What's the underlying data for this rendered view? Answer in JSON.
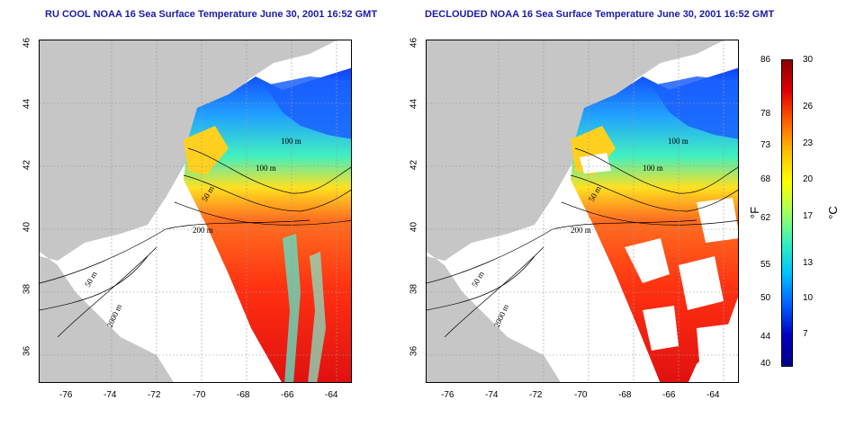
{
  "left_title": "RU COOL NOAA 16 Sea Surface Temperature June 30, 2001 16:52 GMT",
  "right_title": "DECLOUDED NOAA 16 Sea Surface Temperature June 30, 2001 16:52 GMT",
  "lon_ticks": [
    "-76",
    "-74",
    "-72",
    "-70",
    "-68",
    "-66",
    "-64"
  ],
  "lat_ticks": [
    "46",
    "44",
    "42",
    "40",
    "38",
    "36"
  ],
  "contour_labels": {
    "c100a": "100 m",
    "c100b": "100 m",
    "c50": "50 m",
    "c200": "200 m",
    "c50b": "50 m",
    "c2000": "2000 m"
  },
  "colorbar": {
    "fahrenheit_ticks": [
      "86",
      "78",
      "73",
      "68",
      "62",
      "55",
      "50",
      "44",
      "40"
    ],
    "celsius_ticks": [
      "30",
      "26",
      "23",
      "20",
      "17",
      "13",
      "10",
      "7"
    ],
    "fahrenheit_unit": "°F",
    "celsius_unit": "°C",
    "colors": [
      "#8b0000",
      "#e00000",
      "#ff6000",
      "#ffc000",
      "#ffff00",
      "#a0ff60",
      "#30f0c0",
      "#00c0ff",
      "#0060ff",
      "#0000c0",
      "#00008b"
    ]
  }
}
